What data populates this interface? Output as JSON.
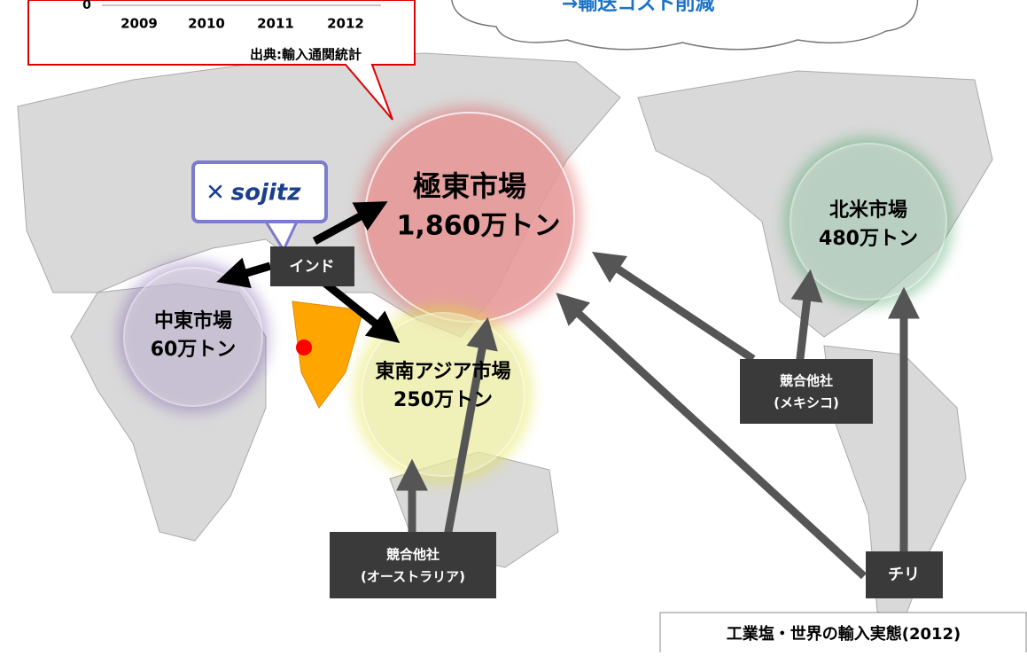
{
  "inset": {
    "axis_zero": "0",
    "years": [
      "2009",
      "2010",
      "2011",
      "2012"
    ],
    "source": "出典:輸入通関統計"
  },
  "cloud": {
    "text": "→輸送コスト削減"
  },
  "company": {
    "logo": "sojitz",
    "origin": "インド"
  },
  "markets": [
    {
      "name": "極東市場",
      "volume": "1,860万トン"
    },
    {
      "name": "北米市場",
      "volume": "480万トン"
    },
    {
      "name": "中東市場",
      "volume": "60万トン"
    },
    {
      "name": "東南アジア市場",
      "volume": "250万トン"
    }
  ],
  "competitors": [
    {
      "label": "競合他社",
      "origin": "(メキシコ)"
    },
    {
      "label": "競合他社",
      "origin": "(オーストラリア)"
    },
    {
      "label": "チリ"
    }
  ],
  "footer": {
    "title": "工業塩・世界の輸入実態(2012)"
  }
}
